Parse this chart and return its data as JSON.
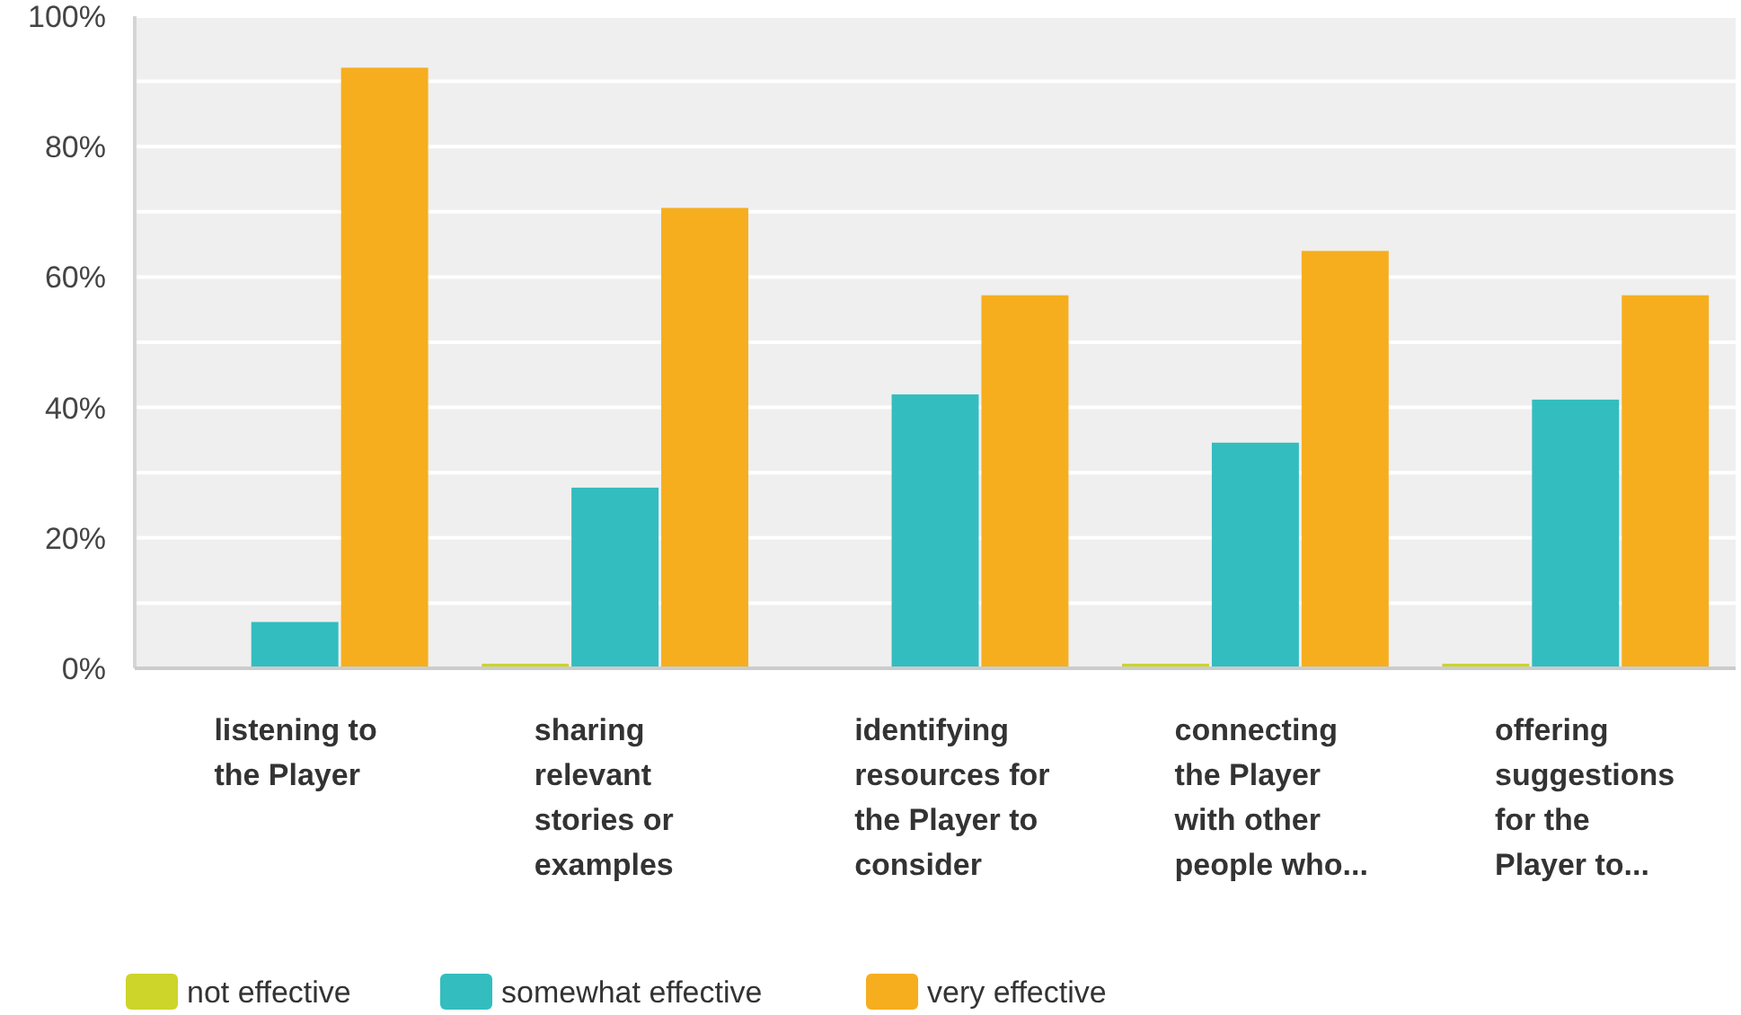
{
  "chart_data": {
    "type": "bar",
    "categories": [
      "listening to the Player",
      "sharing relevant stories or examples",
      "identifying resources for the Player to consider",
      "connecting the Player with other people who...",
      "offering suggestions for the Player to..."
    ],
    "series": [
      {
        "name": "not effective",
        "color": "#cdd42a",
        "values": [
          0,
          0.7,
          0,
          0.7,
          0.7
        ]
      },
      {
        "name": "somewhat effective",
        "color": "#33bdbf",
        "values": [
          7.1,
          27.7,
          42,
          34.6,
          41.2
        ]
      },
      {
        "name": "very effective",
        "color": "#f6ae1f",
        "values": [
          92.1,
          70.6,
          57.2,
          64,
          57.2
        ]
      }
    ],
    "ylim": [
      0,
      100
    ],
    "yticks": [
      {
        "value": 0,
        "label": "0%"
      },
      {
        "value": 10,
        "label": null
      },
      {
        "value": 20,
        "label": "20%"
      },
      {
        "value": 30,
        "label": null
      },
      {
        "value": 40,
        "label": "40%"
      },
      {
        "value": 50,
        "label": null
      },
      {
        "value": 60,
        "label": "60%"
      },
      {
        "value": 70,
        "label": null
      },
      {
        "value": 80,
        "label": "80%"
      },
      {
        "value": 90,
        "label": null
      },
      {
        "value": 100,
        "label": "100%"
      }
    ],
    "grid": true,
    "legend": "bottom"
  }
}
